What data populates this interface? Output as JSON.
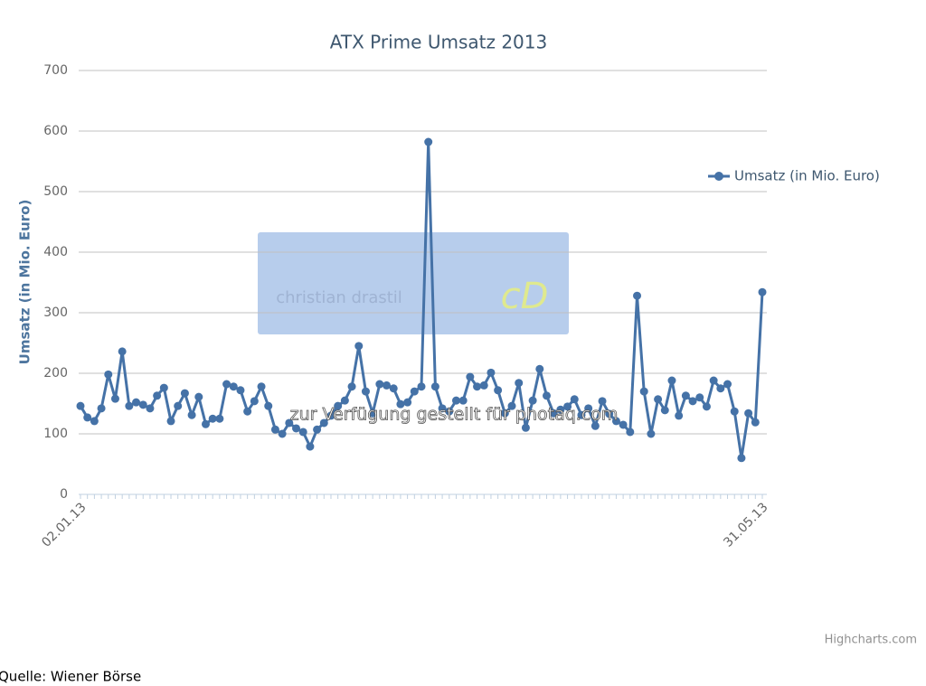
{
  "chart_data": {
    "type": "line",
    "title": "ATX Prime Umsatz 2013",
    "y_axis_title": "Umsatz (in Mio. Euro)",
    "watermark_box": "christian drastil",
    "watermark_text": "zur Verfügung gestellt für photaq.com",
    "credits": "Highcharts.com",
    "source": "Quelle: Wiener Börse",
    "ylim": [
      0,
      700
    ],
    "yticks": [
      0,
      100,
      200,
      300,
      400,
      500,
      600,
      700
    ],
    "grid": true,
    "legend": "right",
    "categories": [
      "02.01.13",
      null,
      null,
      null,
      null,
      null,
      null,
      null,
      null,
      null,
      null,
      null,
      null,
      null,
      null,
      null,
      null,
      null,
      null,
      null,
      null,
      null,
      null,
      null,
      null,
      null,
      null,
      null,
      null,
      null,
      null,
      null,
      null,
      null,
      null,
      null,
      null,
      null,
      null,
      null,
      null,
      null,
      null,
      null,
      null,
      null,
      null,
      null,
      null,
      null,
      null,
      null,
      null,
      null,
      null,
      null,
      null,
      null,
      null,
      null,
      null,
      null,
      null,
      null,
      null,
      null,
      null,
      null,
      null,
      null,
      null,
      null,
      null,
      null,
      null,
      null,
      null,
      null,
      null,
      null,
      null,
      null,
      null,
      null,
      null,
      null,
      null,
      null,
      null,
      null,
      null,
      null,
      null,
      null,
      null,
      null,
      null,
      null,
      "31.05.13"
    ],
    "series": [
      {
        "name": "Umsatz (in Mio. Euro)",
        "color": "#4572a7",
        "values": [
          146,
          127,
          121,
          142,
          198,
          158,
          236,
          146,
          152,
          148,
          142,
          163,
          176,
          121,
          146,
          167,
          131,
          161,
          116,
          125,
          125,
          182,
          178,
          172,
          137,
          154,
          178,
          146,
          107,
          100,
          118,
          109,
          103,
          79,
          107,
          118,
          130,
          146,
          155,
          178,
          245,
          170,
          134,
          182,
          180,
          175,
          149,
          152,
          170,
          178,
          582,
          178,
          142,
          137,
          155,
          155,
          194,
          178,
          180,
          201,
          172,
          134,
          146,
          184,
          110,
          155,
          207,
          163,
          134,
          140,
          145,
          157,
          131,
          142,
          113,
          154,
          133,
          121,
          115,
          103,
          328,
          170,
          100,
          157,
          139,
          188,
          130,
          163,
          154,
          160,
          145,
          188,
          175,
          182,
          137,
          60,
          134,
          119,
          334
        ]
      }
    ]
  }
}
